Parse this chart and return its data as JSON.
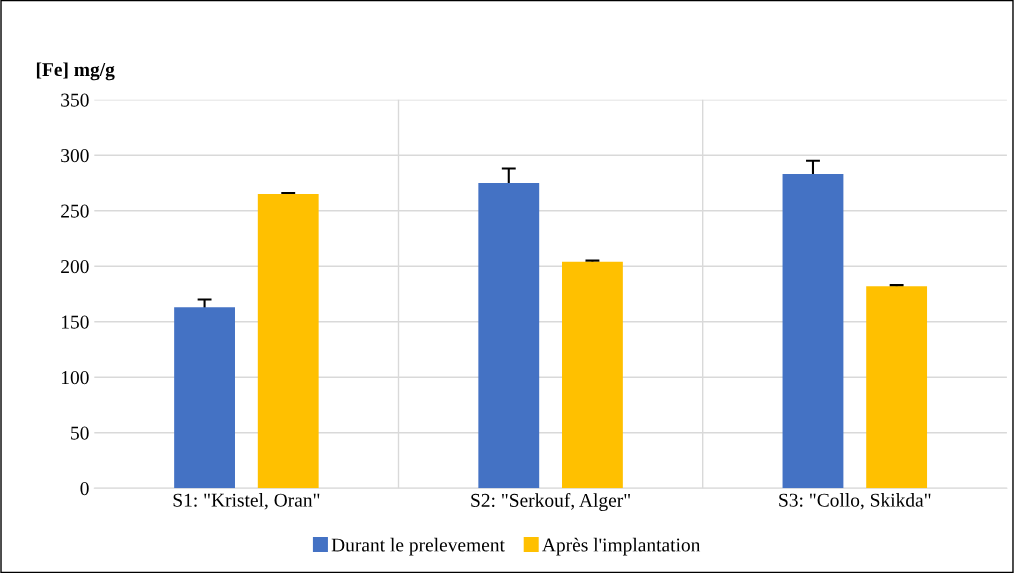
{
  "chart_data": {
    "type": "bar",
    "ylabel": "[Fe] mg/g",
    "categories": [
      "S1: \"Kristel, Oran\"",
      "S2: \"Serkouf, Alger\"",
      "S3: \"Collo, Skikda\""
    ],
    "series": [
      {
        "name": "Durant le prelevement",
        "color": "#4472c4",
        "values": [
          163,
          275,
          283
        ],
        "errors": [
          7,
          13,
          12
        ]
      },
      {
        "name": "Après l'implantation",
        "color": "#ffc000",
        "values": [
          265,
          204,
          182
        ],
        "errors": [
          1,
          1,
          1
        ]
      }
    ],
    "ylim": [
      0,
      350
    ],
    "yticks": [
      0,
      50,
      100,
      150,
      200,
      250,
      300,
      350
    ],
    "grid": true,
    "legend": "bottom"
  }
}
